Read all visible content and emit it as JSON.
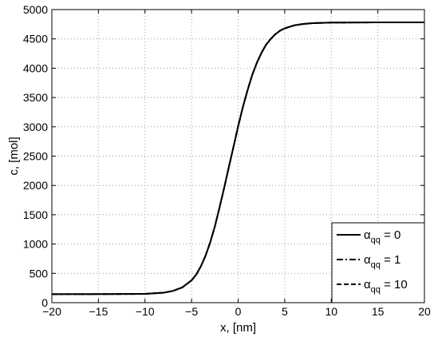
{
  "chart_data": {
    "type": "line",
    "title": "",
    "xlabel": "x, [nm]",
    "ylabel": "c, [mol]",
    "xlim": [
      -20,
      20
    ],
    "ylim": [
      0,
      5000
    ],
    "xticks": [
      -20,
      -15,
      -10,
      -5,
      0,
      5,
      10,
      15,
      20
    ],
    "yticks": [
      0,
      500,
      1000,
      1500,
      2000,
      2500,
      3000,
      3500,
      4000,
      4500,
      5000
    ],
    "grid": true,
    "legend_position": "bottom-right",
    "colors": {
      "line": "#000000",
      "grid": "#a0a0a0"
    },
    "x": [
      -20,
      -15,
      -10,
      -8,
      -7,
      -6,
      -5,
      -4.5,
      -4,
      -3.5,
      -3,
      -2.5,
      -2,
      -1.5,
      -1,
      -0.5,
      0,
      0.5,
      1,
      1.5,
      2,
      2.5,
      3,
      3.5,
      4,
      4.5,
      5,
      6,
      7,
      8,
      10,
      15,
      20
    ],
    "series": [
      {
        "name": "α_qq = 0",
        "legend_base": "α",
        "legend_sub": "qq",
        "legend_value": " = 0",
        "style": "solid",
        "values": [
          145,
          146,
          150,
          170,
          200,
          260,
          380,
          480,
          620,
          800,
          1030,
          1300,
          1620,
          1960,
          2310,
          2660,
          3010,
          3330,
          3620,
          3880,
          4090,
          4260,
          4400,
          4500,
          4580,
          4640,
          4680,
          4730,
          4755,
          4768,
          4778,
          4782,
          4782
        ]
      },
      {
        "name": "α_qq = 1",
        "legend_base": "α",
        "legend_sub": "qq",
        "legend_value": " = 1",
        "style": "dashdot",
        "values": [
          145,
          146,
          150,
          170,
          200,
          260,
          380,
          480,
          620,
          800,
          1030,
          1300,
          1620,
          1960,
          2310,
          2660,
          3010,
          3330,
          3620,
          3880,
          4090,
          4260,
          4400,
          4500,
          4580,
          4640,
          4680,
          4730,
          4755,
          4768,
          4778,
          4782,
          4782
        ]
      },
      {
        "name": "α_qq = 10",
        "legend_base": "α",
        "legend_sub": "qq",
        "legend_value": " = 10",
        "style": "dashed",
        "values": [
          145,
          146,
          150,
          170,
          200,
          260,
          380,
          480,
          620,
          800,
          1030,
          1300,
          1620,
          1960,
          2310,
          2660,
          3010,
          3330,
          3620,
          3880,
          4090,
          4260,
          4400,
          4500,
          4580,
          4640,
          4680,
          4730,
          4755,
          4768,
          4778,
          4782,
          4782
        ]
      }
    ]
  }
}
